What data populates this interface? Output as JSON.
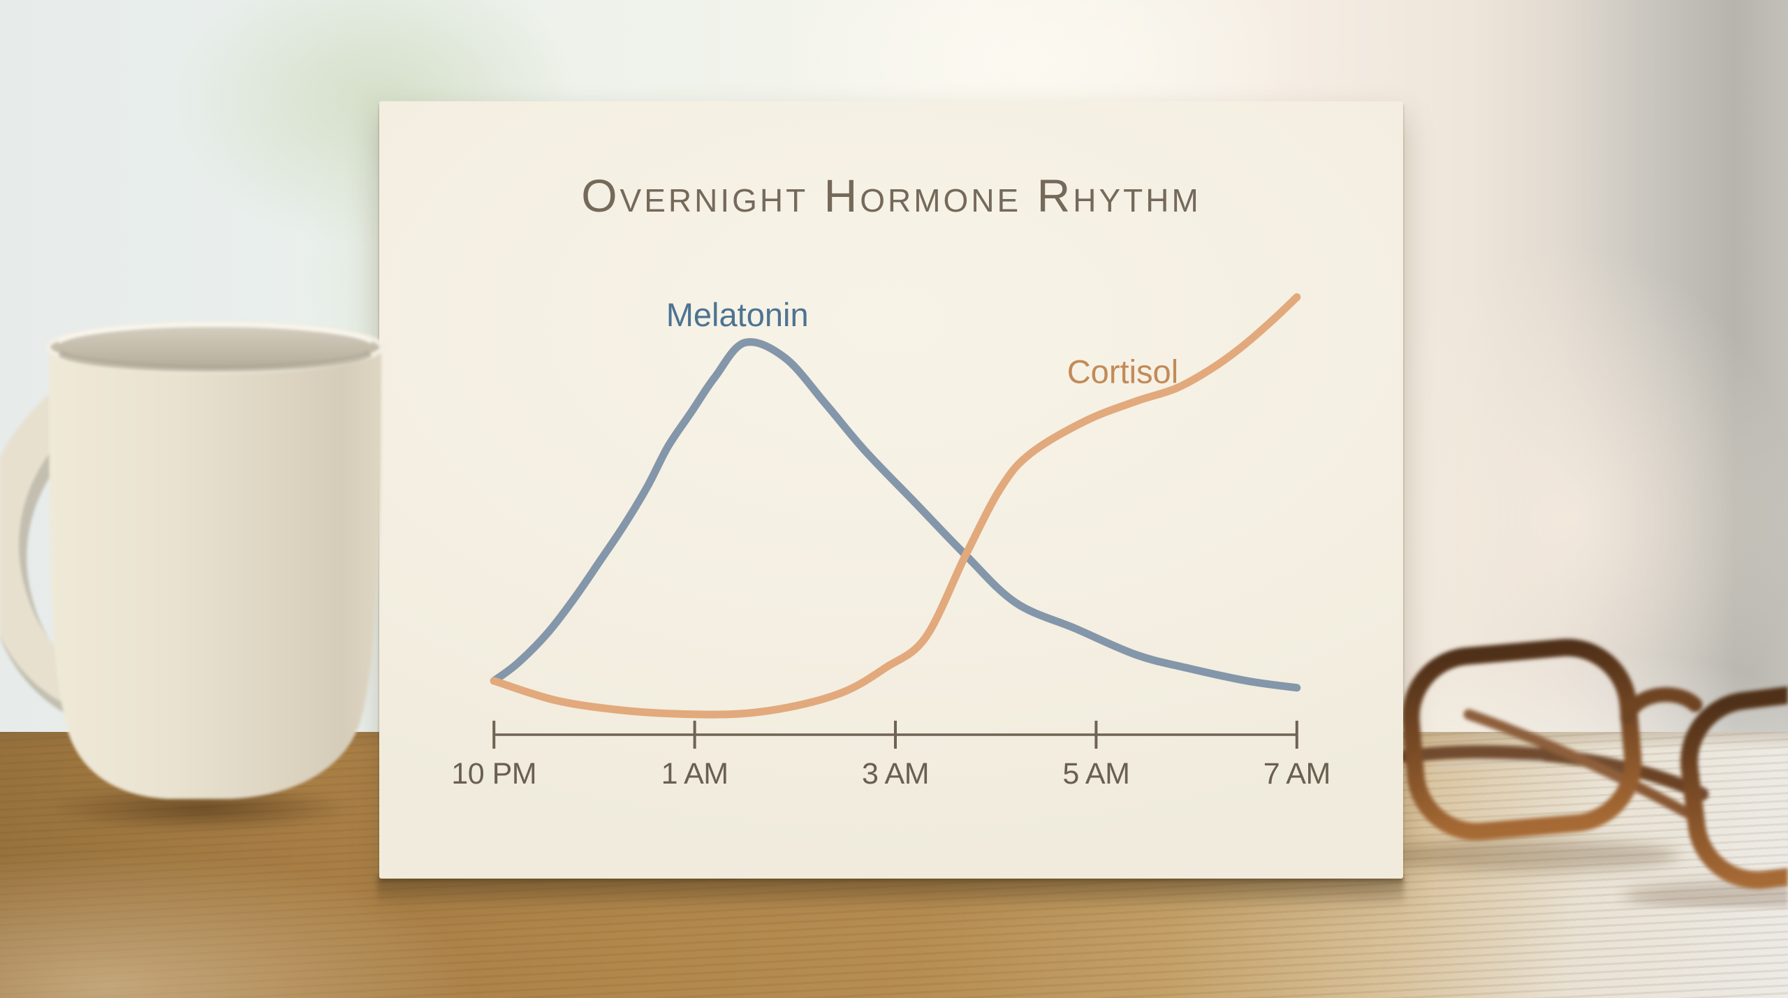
{
  "card": {
    "title": "Overnight Hormone Rhythm"
  },
  "colors": {
    "card_background": "#f4efe2",
    "title_text": "#75695a",
    "axis": "#6f6353",
    "tick_label": "#6a5f50",
    "melatonin_line": "#8496a9",
    "melatonin_label": "#4d7392",
    "cortisol_line": "#e2a97c",
    "cortisol_label": "#c28a58",
    "table_wood": "#b1874c",
    "glasses_frame": "#6d4526"
  },
  "chart_data": {
    "type": "line",
    "title": "Overnight Hormone Rhythm",
    "xlabel": "",
    "ylabel": "",
    "x_ticks": [
      "10 PM",
      "1 AM",
      "3 AM",
      "5 AM",
      "7 AM"
    ],
    "x_tick_hours": [
      22,
      25,
      27,
      29,
      31
    ],
    "y_axis_shown": false,
    "ylim": [
      0,
      1
    ],
    "grid": false,
    "legend_position": "inline-labels-above-curves",
    "series": [
      {
        "name": "Melatonin",
        "color": "#8496a9",
        "label_color": "#4d7392",
        "points": [
          [
            22.0,
            0.1
          ],
          [
            22.35,
            0.14
          ],
          [
            22.8,
            0.21
          ],
          [
            23.2,
            0.29
          ],
          [
            23.6,
            0.38
          ],
          [
            23.95,
            0.46
          ],
          [
            24.3,
            0.55
          ],
          [
            24.6,
            0.64
          ],
          [
            24.95,
            0.72
          ],
          [
            25.2,
            0.8
          ],
          [
            25.5,
            0.88
          ],
          [
            25.9,
            0.845
          ],
          [
            26.3,
            0.74
          ],
          [
            26.7,
            0.63
          ],
          [
            27.2,
            0.51
          ],
          [
            27.7,
            0.39
          ],
          [
            28.2,
            0.28
          ],
          [
            28.8,
            0.22
          ],
          [
            29.4,
            0.16
          ],
          [
            29.9,
            0.13
          ],
          [
            30.5,
            0.1
          ],
          [
            31.0,
            0.084
          ]
        ]
      },
      {
        "name": "Cortisol",
        "color": "#e2a97c",
        "label_color": "#c28a58",
        "points": [
          [
            22.0,
            0.1
          ],
          [
            22.9,
            0.056
          ],
          [
            23.8,
            0.034
          ],
          [
            24.7,
            0.024
          ],
          [
            25.45,
            0.024
          ],
          [
            26.0,
            0.042
          ],
          [
            26.5,
            0.076
          ],
          [
            26.9,
            0.13
          ],
          [
            27.3,
            0.2
          ],
          [
            27.7,
            0.39
          ],
          [
            28.05,
            0.545
          ],
          [
            28.35,
            0.625
          ],
          [
            28.9,
            0.7
          ],
          [
            29.4,
            0.745
          ],
          [
            29.8,
            0.775
          ],
          [
            30.15,
            0.82
          ],
          [
            30.45,
            0.87
          ],
          [
            30.75,
            0.93
          ],
          [
            31.0,
            0.985
          ]
        ]
      }
    ]
  },
  "decor": {
    "mug": "coffee-mug",
    "glasses": "reading-glasses",
    "table": "wooden-desk",
    "background": "blurred-window"
  }
}
